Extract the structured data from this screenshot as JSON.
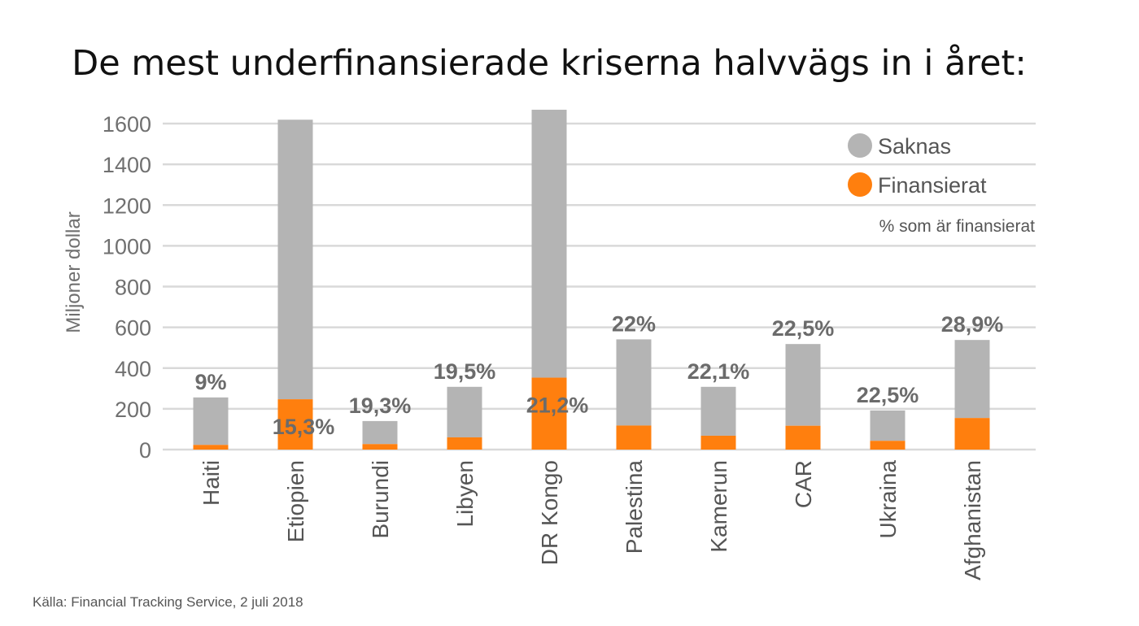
{
  "chart_data": {
    "type": "bar",
    "stacked": true,
    "title": "De mest underfinansierade kriserna halvvägs in i året:",
    "ylabel": "Miljoner dollar",
    "xlabel": "",
    "ylim": [
      0,
      1600
    ],
    "yticks": [
      0,
      200,
      400,
      600,
      800,
      1000,
      1200,
      1400,
      1600
    ],
    "grid": true,
    "legend_position": "top-right",
    "legend_note": "% som är finansierat",
    "categories": [
      "Haiti",
      "Etiopien",
      "Burundi",
      "Libyen",
      "DR Kongo",
      "Palestina",
      "Kamerun",
      "CAR",
      "Ukraina",
      "Afghanistan"
    ],
    "series": [
      {
        "name": "Finansierat",
        "color": "#ff7f0e",
        "values": [
          23,
          247,
          27,
          60,
          353,
          118,
          68,
          117,
          43,
          155
        ]
      },
      {
        "name": "Saknas",
        "color": "#b4b4b4",
        "values": [
          233,
          1372,
          113,
          248,
          1315,
          423,
          240,
          401,
          149,
          383
        ]
      }
    ],
    "percent_labels": [
      "9%",
      "15,3%",
      "19,3%",
      "19,5%",
      "21,2%",
      "22%",
      "22,1%",
      "22,5%",
      "22,5%",
      "28,9%"
    ],
    "source": "Källa: Financial Tracking Service, 2 juli 2018"
  }
}
